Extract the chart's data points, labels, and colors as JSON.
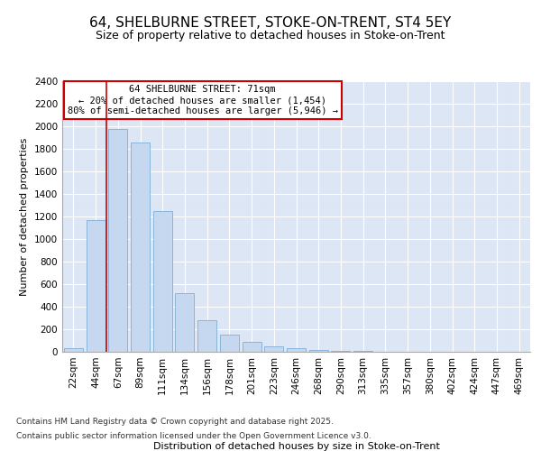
{
  "title": "64, SHELBURNE STREET, STOKE-ON-TRENT, ST4 5EY",
  "subtitle": "Size of property relative to detached houses in Stoke-on-Trent",
  "xlabel": "Distribution of detached houses by size in Stoke-on-Trent",
  "ylabel": "Number of detached properties",
  "categories": [
    "22sqm",
    "44sqm",
    "67sqm",
    "89sqm",
    "111sqm",
    "134sqm",
    "156sqm",
    "178sqm",
    "201sqm",
    "223sqm",
    "246sqm",
    "268sqm",
    "290sqm",
    "313sqm",
    "335sqm",
    "357sqm",
    "380sqm",
    "402sqm",
    "424sqm",
    "447sqm",
    "469sqm"
  ],
  "values": [
    30,
    1170,
    1980,
    1860,
    1250,
    520,
    280,
    150,
    90,
    45,
    35,
    20,
    10,
    5,
    3,
    2,
    2,
    1,
    1,
    1,
    1
  ],
  "bar_color": "#c5d8f0",
  "bar_edge_color": "#89b4d9",
  "vline_x_index": 2,
  "vline_color": "#cc0000",
  "annotation_title": "64 SHELBURNE STREET: 71sqm",
  "annotation_line2": "← 20% of detached houses are smaller (1,454)",
  "annotation_line3": "80% of semi-detached houses are larger (5,946) →",
  "annotation_box_color": "#ffffff",
  "annotation_border_color": "#cc0000",
  "ylim": [
    0,
    2400
  ],
  "yticks": [
    0,
    200,
    400,
    600,
    800,
    1000,
    1200,
    1400,
    1600,
    1800,
    2000,
    2200,
    2400
  ],
  "bg_color": "#ffffff",
  "plot_bg_color": "#dce6f5",
  "grid_color": "#ffffff",
  "footer_line1": "Contains HM Land Registry data © Crown copyright and database right 2025.",
  "footer_line2": "Contains public sector information licensed under the Open Government Licence v3.0.",
  "title_fontsize": 11,
  "subtitle_fontsize": 9,
  "label_fontsize": 8,
  "tick_fontsize": 7.5,
  "footer_fontsize": 6.5,
  "ann_fontsize": 7.5
}
